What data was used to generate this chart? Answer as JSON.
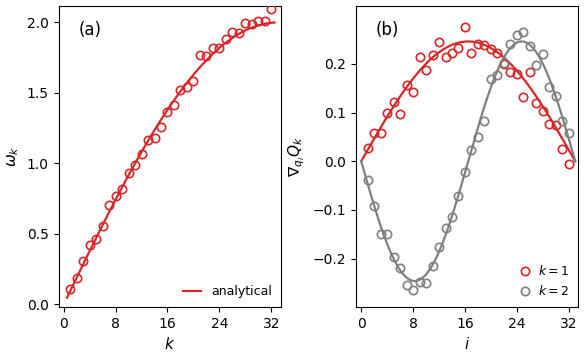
{
  "N": 32,
  "red_color": "#d62728",
  "gray_color": "#7f7f7f",
  "line_width": 1.6,
  "marker_size": 6,
  "marker_lw": 1.2,
  "fig_width": 5.84,
  "fig_height": 3.58,
  "panel_a_ylabel": "$\\omega_k$",
  "panel_a_xlabel": "$k$",
  "panel_b_ylabel": "$\\nabla_{q_i}Q_k$",
  "panel_b_xlabel": "$i$",
  "label_a": "(a)",
  "label_b": "(b)",
  "legend_analytical": "analytical",
  "legend_k1": "$k=1$",
  "legend_k2": "$k=2$"
}
